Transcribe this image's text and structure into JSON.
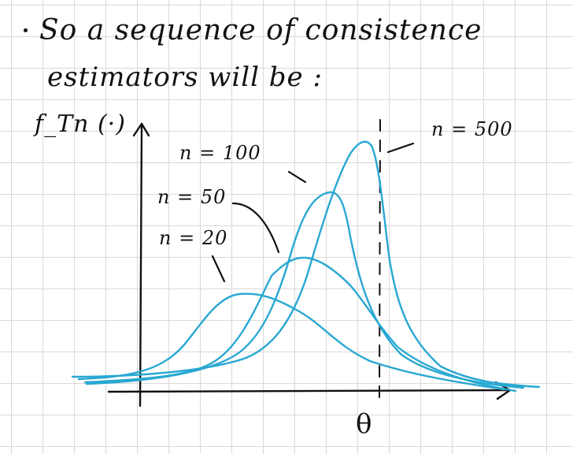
{
  "note": {
    "line1": "So a sequence of consistence",
    "line2": "estimators will be :"
  },
  "axes": {
    "ylabel": "f_Tn (·)",
    "xmark": "θ"
  },
  "curves": [
    {
      "label": "n = 20"
    },
    {
      "label": "n = 50"
    },
    {
      "label": "n = 100"
    },
    {
      "label": "n = 500"
    }
  ],
  "colors": {
    "ink": "#111111",
    "curve": "#29a8d2",
    "grid": "#d9d9d9"
  }
}
